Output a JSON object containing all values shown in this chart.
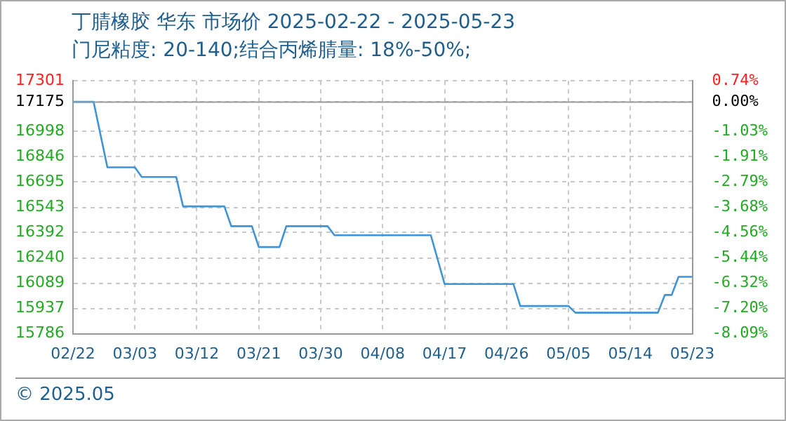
{
  "chart_data": {
    "type": "line",
    "title": "丁腈橡胶 华东 市场价 2025-02-22 - 2025-05-23",
    "subtitle": "门尼粘度: 20-140;结合丙烯腈量: 18%-50%;",
    "x": [
      "2025-02-22",
      "2025-02-25",
      "2025-02-27",
      "2025-03-03",
      "2025-03-04",
      "2025-03-09",
      "2025-03-10",
      "2025-03-16",
      "2025-03-17",
      "2025-03-20",
      "2025-03-21",
      "2025-03-24",
      "2025-03-25",
      "2025-03-31",
      "2025-04-01",
      "2025-04-15",
      "2025-04-17",
      "2025-04-27",
      "2025-04-28",
      "2025-05-05",
      "2025-05-06",
      "2025-05-18",
      "2025-05-19",
      "2025-05-20",
      "2025-05-21",
      "2025-05-23"
    ],
    "series": [
      {
        "color": "#3d94d6",
        "values": [
          17175,
          17175,
          16783,
          16783,
          16725,
          16725,
          16549,
          16549,
          16430,
          16430,
          16305,
          16305,
          16430,
          16430,
          16376,
          16376,
          16084,
          16084,
          15952,
          15952,
          15912,
          15912,
          16018,
          16018,
          16127,
          16127
        ]
      }
    ],
    "xlim": [
      "2025-02-22",
      "2025-05-23"
    ],
    "xticks": [
      {
        "value": "2025-02-22",
        "label": "02/22"
      },
      {
        "value": "2025-03-03",
        "label": "03/03"
      },
      {
        "value": "2025-03-12",
        "label": "03/12"
      },
      {
        "value": "2025-03-21",
        "label": "03/21"
      },
      {
        "value": "2025-03-30",
        "label": "03/30"
      },
      {
        "value": "2025-04-08",
        "label": "04/08"
      },
      {
        "value": "2025-04-17",
        "label": "04/17"
      },
      {
        "value": "2025-04-26",
        "label": "04/26"
      },
      {
        "value": "2025-05-05",
        "label": "05/05"
      },
      {
        "value": "2025-05-14",
        "label": "05/14"
      },
      {
        "value": "2025-05-23",
        "label": "05/23"
      }
    ],
    "ylim": [
      15786,
      17301
    ],
    "yticks": [
      15786,
      15937,
      16089,
      16240,
      16392,
      16543,
      16695,
      16846,
      16998,
      17175,
      17301
    ],
    "y2lim": [
      -8.09,
      0.74
    ],
    "y2ticks": [
      {
        "value": -8.09,
        "label": "-8.09%"
      },
      {
        "value": -7.2,
        "label": "-7.20%"
      },
      {
        "value": -6.32,
        "label": "-6.32%"
      },
      {
        "value": -5.44,
        "label": "-5.44%"
      },
      {
        "value": -4.56,
        "label": "-4.56%"
      },
      {
        "value": -3.68,
        "label": "-3.68%"
      },
      {
        "value": -2.79,
        "label": "-2.79%"
      },
      {
        "value": -1.91,
        "label": "-1.91%"
      },
      {
        "value": -1.03,
        "label": "-1.03%"
      },
      {
        "value": 0,
        "label": "0.00%"
      },
      {
        "value": 0.74,
        "label": "0.74%"
      }
    ],
    "ref_lines": [
      {
        "axis": "y2",
        "value": 0,
        "color": "#999999"
      }
    ],
    "annotations": [
      "© 2025.05"
    ],
    "grid": true,
    "marker": "none",
    "line_style": "solid"
  }
}
